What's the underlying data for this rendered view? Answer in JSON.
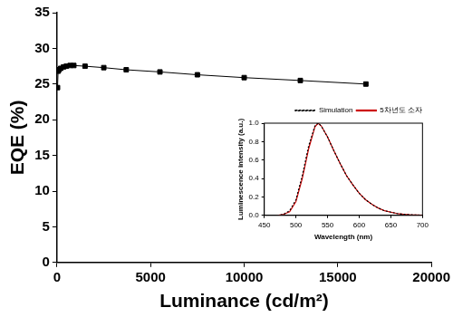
{
  "chart_data": [
    {
      "type": "line",
      "x_label": "Luminance (cd/m²)",
      "y_label": "EQE (%)",
      "x": [
        30,
        60,
        100,
        200,
        350,
        500,
        700,
        900,
        1500,
        2500,
        3700,
        5500,
        7500,
        10000,
        13000,
        16500
      ],
      "series": [
        {
          "color": "#000000",
          "marker": "square",
          "line_style": "solid",
          "values": [
            24.5,
            26.8,
            27.0,
            27.2,
            27.4,
            27.5,
            27.6,
            27.6,
            27.5,
            27.3,
            27.0,
            26.7,
            26.3,
            25.9,
            25.5,
            25.0
          ]
        }
      ],
      "xlim": [
        0,
        20000
      ],
      "xticks": [
        0,
        5000,
        10000,
        15000,
        20000
      ],
      "ylim": [
        0,
        35
      ],
      "yticks": [
        0,
        5,
        10,
        15,
        20,
        25,
        30,
        35
      ],
      "grid": false
    },
    {
      "type": "line",
      "x_label": "Wavelength (nm)",
      "y_label": "Luminescence intensity (a.u.)",
      "x": [
        470,
        480,
        490,
        500,
        510,
        520,
        530,
        535,
        540,
        550,
        560,
        570,
        580,
        590,
        600,
        610,
        620,
        630,
        640,
        650,
        660,
        670,
        680,
        690,
        700
      ],
      "series": [
        {
          "name": "Simulation",
          "color": "#000000",
          "marker": "none",
          "line_style": "dotted",
          "values": [
            0.0,
            0.01,
            0.05,
            0.17,
            0.43,
            0.75,
            0.97,
            1.0,
            0.97,
            0.85,
            0.7,
            0.56,
            0.43,
            0.33,
            0.24,
            0.17,
            0.12,
            0.08,
            0.05,
            0.035,
            0.02,
            0.012,
            0.007,
            0.004,
            0.002
          ]
        },
        {
          "name": "5차년도 소자",
          "color": "#cc0000",
          "marker": "none",
          "line_style": "solid",
          "values": [
            0.0,
            0.01,
            0.04,
            0.15,
            0.4,
            0.72,
            0.96,
            1.0,
            0.97,
            0.85,
            0.7,
            0.56,
            0.43,
            0.33,
            0.24,
            0.17,
            0.12,
            0.08,
            0.05,
            0.035,
            0.02,
            0.012,
            0.007,
            0.004,
            0.002
          ]
        }
      ],
      "xlim": [
        450,
        700
      ],
      "xticks": [
        450,
        500,
        550,
        600,
        650,
        700
      ],
      "ylim": [
        0,
        1
      ],
      "yticks": [
        {
          "value": 0,
          "label": "0.0"
        },
        {
          "value": 0.2,
          "label": "0.2"
        },
        {
          "value": 0.4,
          "label": "0.4"
        },
        {
          "value": 0.6,
          "label": "0.6"
        },
        {
          "value": 0.8,
          "label": "0.8"
        },
        {
          "value": 1,
          "label": "1.0"
        }
      ],
      "grid": false,
      "legend": "upper right"
    }
  ]
}
